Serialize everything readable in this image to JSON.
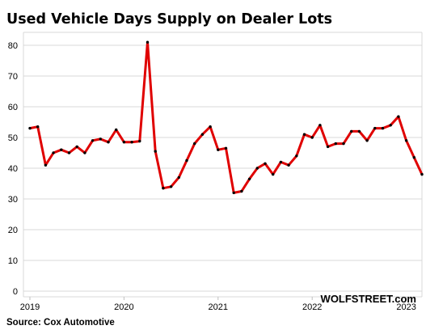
{
  "chart_data": {
    "type": "line",
    "title": "Used Vehicle Days Supply on Dealer Lots",
    "source": "Source: Cox Automotive",
    "brand": "WOLFSTREET.com",
    "ylim": [
      0,
      85
    ],
    "yticks": [
      0,
      10,
      20,
      30,
      40,
      50,
      60,
      70,
      80
    ],
    "x_tick_labels": [
      "2019",
      "2020",
      "2021",
      "2022",
      "2023"
    ],
    "grid": "horizontal",
    "line_color": "#e00000",
    "marker_color": "#000000",
    "series": [
      {
        "x": [
          "2019-01",
          "2019-02",
          "2019-03",
          "2019-04",
          "2019-05",
          "2019-06",
          "2019-07",
          "2019-08",
          "2019-09",
          "2019-10",
          "2019-11",
          "2019-12",
          "2020-01",
          "2020-02",
          "2020-03",
          "2020-04",
          "2020-05",
          "2020-06",
          "2020-07",
          "2020-08",
          "2020-09",
          "2020-10",
          "2020-11",
          "2020-12",
          "2021-01",
          "2021-02",
          "2021-03",
          "2021-04",
          "2021-05",
          "2021-06",
          "2021-07",
          "2021-08",
          "2021-09",
          "2021-10",
          "2021-11",
          "2021-12",
          "2022-01",
          "2022-02",
          "2022-03",
          "2022-04",
          "2022-05",
          "2022-06",
          "2022-07",
          "2022-08",
          "2022-09",
          "2022-10",
          "2022-11",
          "2022-12",
          "2023-01",
          "2023-02",
          "2023-03"
        ],
        "values": [
          53,
          53.5,
          41,
          45,
          46,
          45,
          47,
          45,
          49,
          49.5,
          48.5,
          52.5,
          48.5,
          48.5,
          48.8,
          81,
          45.5,
          33.5,
          34,
          37,
          42.5,
          48,
          51,
          53.5,
          46,
          46.5,
          32,
          32.5,
          36.5,
          40,
          41.5,
          38,
          42,
          41,
          44,
          51,
          50,
          54,
          47,
          48,
          48,
          52,
          52,
          49,
          53,
          53,
          54,
          56.8,
          49,
          43.5,
          38
        ]
      }
    ]
  }
}
